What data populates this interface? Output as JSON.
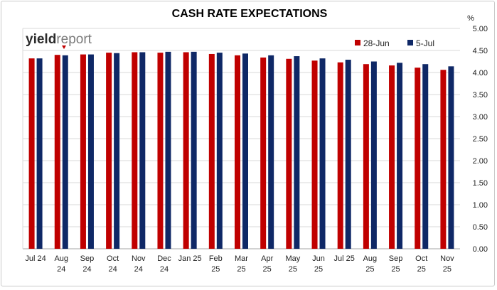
{
  "chart_data": {
    "type": "bar",
    "title": "CASH RATE EXPECTATIONS",
    "ylabel": "%",
    "ylim": [
      0,
      5
    ],
    "yticks": [
      "0.00",
      "0.50",
      "1.00",
      "1.50",
      "2.00",
      "2.50",
      "3.00",
      "3.50",
      "4.00",
      "4.50",
      "5.00"
    ],
    "grid": true,
    "legend_position": "top-right",
    "categories": [
      [
        "Jul 24"
      ],
      [
        "Aug",
        "24"
      ],
      [
        "Sep",
        "24"
      ],
      [
        "Oct",
        "24"
      ],
      [
        "Nov",
        "24"
      ],
      [
        "Dec",
        "24"
      ],
      [
        "Jan 25"
      ],
      [
        "Feb",
        "25"
      ],
      [
        "Mar",
        "25"
      ],
      [
        "Apr",
        "25"
      ],
      [
        "May",
        "25"
      ],
      [
        "Jun",
        "25"
      ],
      [
        "Jul 25"
      ],
      [
        "Aug",
        "25"
      ],
      [
        "Sep",
        "25"
      ],
      [
        "Oct",
        "25"
      ],
      [
        "Nov",
        "25"
      ]
    ],
    "series": [
      {
        "name": "28-Jun",
        "color": "#c00000",
        "values": [
          4.32,
          4.4,
          4.41,
          4.45,
          4.46,
          4.45,
          4.46,
          4.42,
          4.39,
          4.34,
          4.31,
          4.27,
          4.23,
          4.19,
          4.16,
          4.11,
          4.06
        ]
      },
      {
        "name": "5-Jul",
        "color": "#0f2866",
        "values": [
          4.32,
          4.39,
          4.41,
          4.44,
          4.46,
          4.47,
          4.47,
          4.45,
          4.43,
          4.39,
          4.37,
          4.32,
          4.29,
          4.25,
          4.22,
          4.19,
          4.14
        ]
      }
    ]
  },
  "logo": {
    "part1": "yield",
    "part2": "report",
    "accent": "#c00000"
  },
  "colors": {
    "grid": "#d9d9d9",
    "axis": "#a6a6a6"
  }
}
